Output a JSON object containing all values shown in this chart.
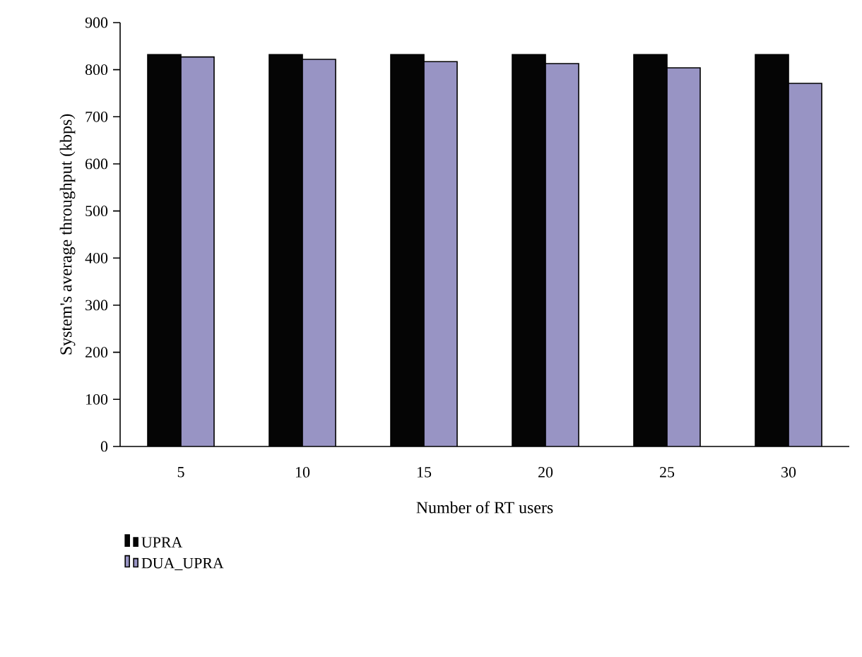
{
  "chart_data": {
    "type": "bar",
    "xlabel": "Number of RT users",
    "ylabel": "System's average throughput (kbps)",
    "categories": [
      "5",
      "10",
      "15",
      "20",
      "25",
      "30"
    ],
    "series": [
      {
        "name": "UPRA",
        "color": "#050505",
        "values": [
          832,
          832,
          832,
          832,
          832,
          832
        ]
      },
      {
        "name": "DUA_UPRA",
        "color": "#9894c4",
        "values": [
          827,
          822,
          817,
          813,
          804,
          771
        ]
      }
    ],
    "ylim": [
      0,
      900
    ],
    "yticks": [
      0,
      100,
      200,
      300,
      400,
      500,
      600,
      700,
      800,
      900
    ],
    "legend": "bottom left",
    "grid": false
  }
}
